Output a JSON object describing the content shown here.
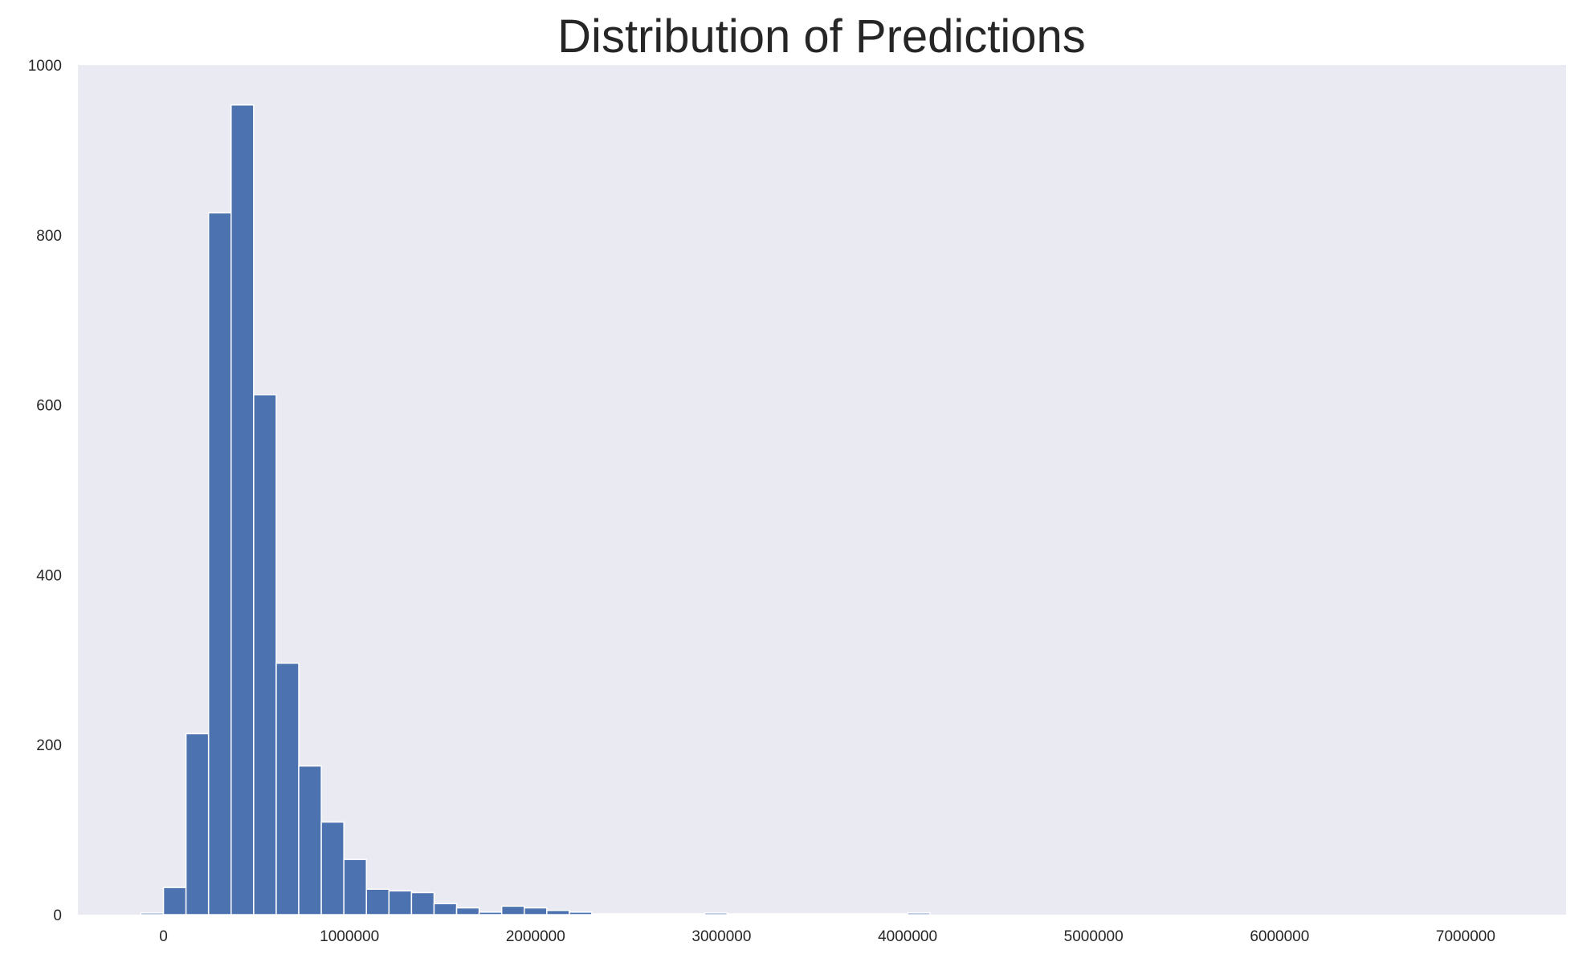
{
  "chart_data": {
    "type": "bar",
    "title": "Distribution of Predictions",
    "xlabel": "",
    "ylabel": "",
    "grid": false,
    "bin_width": 121212,
    "bins": [
      {
        "x0": -121212,
        "count": 2
      },
      {
        "x0": 0,
        "count": 32
      },
      {
        "x0": 121212,
        "count": 213
      },
      {
        "x0": 242424,
        "count": 826
      },
      {
        "x0": 363636,
        "count": 953
      },
      {
        "x0": 484848,
        "count": 612
      },
      {
        "x0": 606061,
        "count": 296
      },
      {
        "x0": 727273,
        "count": 175
      },
      {
        "x0": 848485,
        "count": 109
      },
      {
        "x0": 969697,
        "count": 65
      },
      {
        "x0": 1090909,
        "count": 30
      },
      {
        "x0": 1212121,
        "count": 28
      },
      {
        "x0": 1333333,
        "count": 26
      },
      {
        "x0": 1454545,
        "count": 13
      },
      {
        "x0": 1575758,
        "count": 8
      },
      {
        "x0": 1696970,
        "count": 3
      },
      {
        "x0": 1818182,
        "count": 10
      },
      {
        "x0": 1939394,
        "count": 8
      },
      {
        "x0": 2060606,
        "count": 5
      },
      {
        "x0": 2181818,
        "count": 3
      },
      {
        "x0": 2303030,
        "count": 1
      },
      {
        "x0": 2424242,
        "count": 1
      },
      {
        "x0": 2545455,
        "count": 1
      },
      {
        "x0": 2666667,
        "count": 1
      },
      {
        "x0": 2787879,
        "count": 1
      },
      {
        "x0": 2909091,
        "count": 2
      },
      {
        "x0": 3030303,
        "count": 1
      },
      {
        "x0": 3151515,
        "count": 1
      },
      {
        "x0": 3272727,
        "count": 1
      },
      {
        "x0": 3393939,
        "count": 1
      },
      {
        "x0": 3515152,
        "count": 1
      },
      {
        "x0": 3636364,
        "count": 1
      },
      {
        "x0": 3757576,
        "count": 1
      },
      {
        "x0": 3878788,
        "count": 1
      },
      {
        "x0": 4000000,
        "count": 2
      }
    ],
    "xlim": [
      -460000,
      7540000
    ],
    "ylim": [
      0,
      1000
    ],
    "x_ticks": [
      {
        "value": 0,
        "label": "0"
      },
      {
        "value": 1000000,
        "label": "1000000"
      },
      {
        "value": 2000000,
        "label": "2000000"
      },
      {
        "value": 3000000,
        "label": "3000000"
      },
      {
        "value": 4000000,
        "label": "4000000"
      },
      {
        "value": 5000000,
        "label": "5000000"
      },
      {
        "value": 6000000,
        "label": "6000000"
      },
      {
        "value": 7000000,
        "label": "7000000"
      }
    ],
    "y_ticks": [
      {
        "value": 0,
        "label": "0"
      },
      {
        "value": 200,
        "label": "200"
      },
      {
        "value": 400,
        "label": "400"
      },
      {
        "value": 600,
        "label": "600"
      },
      {
        "value": 800,
        "label": "800"
      },
      {
        "value": 1000,
        "label": "1000"
      }
    ],
    "colors": {
      "bar": "#4c72b0",
      "bar_edge": "#ffffff",
      "plot_background": "#eaeaf2",
      "text": "#262626"
    }
  }
}
